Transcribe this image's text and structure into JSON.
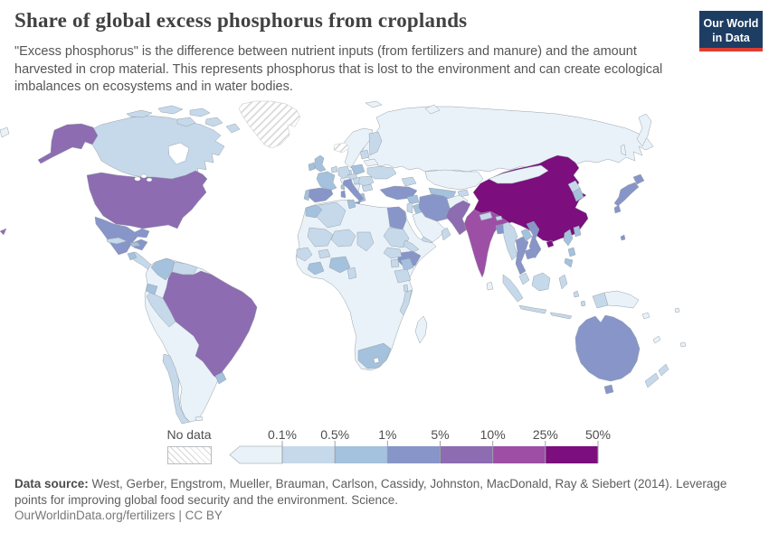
{
  "header": {
    "title": "Share of global excess phosphorus from croplands",
    "subtitle": "\"Excess phosphorus\" is the difference between nutrient inputs (from fertilizers and manure) and the amount harvested in crop material. This represents phosphorus that is lost to the environment and can create ecological imbalances on ecosystems and in water bodies.",
    "logo": {
      "line1": "Our World",
      "line2": "in Data",
      "bg_color": "#1d3d63",
      "bar_color": "#dc3e32"
    }
  },
  "legend": {
    "no_data_label": "No data",
    "tick_labels": [
      "0.1%",
      "0.5%",
      "1%",
      "5%",
      "10%",
      "25%",
      "50%"
    ],
    "bin_colors": [
      "#e9f2f8",
      "#c6d9eb",
      "#a4c1dd",
      "#8795c8",
      "#8d6cb2",
      "#9d4fa6",
      "#7c0e7e"
    ],
    "no_data_hatch_color": "#d6d6d6",
    "border_color": "#b0b6bb",
    "tick_color": "#9ba2a8"
  },
  "footer": {
    "source_label": "Data source:",
    "source_text": "West, Gerber, Engstrom, Mueller, Brauman, Carlson, Cassidy, Johnston, MacDonald, Ray & Siebert (2014). Leverage points for improving global food security and the environment. Science.",
    "link_text": "OurWorldinData.org/fertilizers",
    "separator": "|",
    "license_text": "CC BY"
  },
  "chart_data": {
    "type": "heatmap",
    "title": "Share of global excess phosphorus from croplands",
    "unit": "share of global excess phosphorus (%)",
    "legend_position": "bottom",
    "bins": [
      "<0.1%",
      "0.1–0.5%",
      "0.5–1%",
      "1–5%",
      "5–10%",
      "10–25%",
      "25–50%"
    ],
    "no_data_regions": [
      "Greenland",
      "Iceland"
    ],
    "notable_values": {
      "China": "25–50%",
      "India": "10–25%",
      "United States": "5–10%",
      "Brazil": "5–10%",
      "Pakistan": "5–10%",
      "Australia": "1–5%",
      "Mexico": "1–5%",
      "Spain": "1–5%",
      "Italy": "1–5%",
      "Turkey": "1–5%",
      "Iran": "1–5%",
      "Egypt": "1–5%",
      "Ethiopia": "1–5%",
      "Japan": "1–5%",
      "Vietnam": "1–5%",
      "Thailand": "1–5%",
      "Canada": "0.1–0.5%",
      "Indonesia": "0.1–0.5%",
      "France": "0.5–1%",
      "Nigeria": "0.5–1%",
      "South Africa": "0.5–1%",
      "Russia": "<0.1%",
      "Argentina": "<0.1%",
      "Kazakhstan": "<0.1%",
      "Mongolia": "<0.1%"
    },
    "country_bins": {
      "greenland": "nodata",
      "iceland": "nodata",
      "canada": 1,
      "usa": 4,
      "mexico": 3,
      "cuba": 1,
      "hispaniola": 2,
      "guatemala": 2,
      "central-america": 1,
      "south-america": 0,
      "colombia": 2,
      "venezuela": 1,
      "ecuador": 2,
      "peru": 1,
      "brazil": 4,
      "uruguay": 2,
      "chile": 1,
      "falkland-islands": 0,
      "scandinavia": 0,
      "finland": 1,
      "denmark": 1,
      "uk": 2,
      "ireland": 2,
      "benelux": 1,
      "germany": 1,
      "poland": 2,
      "czechia": 1,
      "france": 2,
      "spain": 3,
      "portugal": 2,
      "italy": 3,
      "austria": 0,
      "hungary": 1,
      "romania": 1,
      "balkans": 0,
      "greece": 2,
      "bulgaria": 1,
      "ukraine": 1,
      "belarus": 0,
      "baltics": 1,
      "russia": 0,
      "kazakhstan": 0,
      "uzbekistan-turkmenistan": 2,
      "kyrgyzstan": 1,
      "caucasus": 1,
      "turkey": 3,
      "syria": 2,
      "iraq": 2,
      "israel-jordan": 1,
      "saudi-arabia": 0,
      "yemen": 1,
      "oman": 1,
      "iran": 3,
      "afghanistan": 0,
      "pakistan": 4,
      "india": 5,
      "sri-lanka": 0,
      "bangladesh": 3,
      "nepal": 1,
      "bhutan": 1,
      "china": 6,
      "taiwan": 2,
      "mongolia": 0,
      "north-korea": 1,
      "south-korea": 2,
      "japan": 3,
      "myanmar": 1,
      "thailand": 3,
      "laos": 2,
      "vietnam": 3,
      "cambodia": 3,
      "malaysia": 1,
      "indonesia": 1,
      "papua-new-guinea": 0,
      "philippines": 2,
      "australia": 3,
      "new-zealand": 1,
      "pacific-islands": 0,
      "africa": 0,
      "morocco": 2,
      "algeria": 1,
      "tunisia": 2,
      "egypt": 3,
      "mali": 1,
      "niger": 1,
      "chad": 1,
      "sudan": 1,
      "south-sudan": 1,
      "eritrea": 1,
      "ethiopia": 3,
      "uganda": 1,
      "kenya": 2,
      "tanzania": 1,
      "senegal-guinea": 1,
      "burkina-faso": 1,
      "ivory-coast-ghana": 2,
      "nigeria": 2,
      "cameroon": 1,
      "malawi": 1,
      "mozambique": 1,
      "south-africa": 2,
      "madagascar": 0
    }
  }
}
